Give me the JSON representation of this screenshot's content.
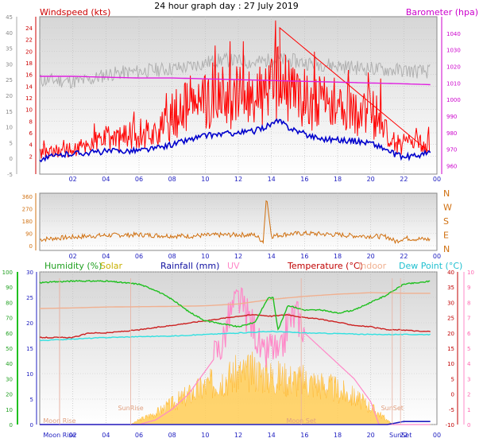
{
  "page": {
    "title": "24 hour graph day : 27 July 2019"
  },
  "chart_data": [
    {
      "panel": "wind_baro",
      "type": "line",
      "titles": {
        "left": "Windspeed (kts)",
        "right": "Barometer (hpa)"
      },
      "x_ticks": [
        "02",
        "04",
        "06",
        "08",
        "10",
        "12",
        "14",
        "16",
        "18",
        "20",
        "22",
        "00"
      ],
      "y_left_outer_ticks": [
        "-5",
        "0",
        "5",
        "10",
        "15",
        "20",
        "25",
        "30",
        "35",
        "40",
        "45"
      ],
      "y_left_inner_ticks": [
        "2",
        "4",
        "6",
        "8",
        "10",
        "12",
        "14",
        "16",
        "18",
        "20",
        "22",
        "24"
      ],
      "y_right_ticks": [
        "960",
        "970",
        "980",
        "990",
        "1000",
        "1010",
        "1020",
        "1030",
        "1040"
      ],
      "y_left_outer_range": [
        -5,
        45
      ],
      "y_right_range": [
        955,
        1050
      ],
      "series": [
        {
          "name": "Barometer",
          "color": "#e020e0",
          "axis": "right",
          "x": [
            0,
            2,
            4,
            6,
            8,
            10,
            12,
            14,
            16,
            18,
            20,
            22,
            23.6
          ],
          "y": [
            1014,
            1014,
            1013.5,
            1013,
            1013,
            1012.5,
            1012,
            1011.5,
            1011,
            1010.5,
            1010,
            1009.5,
            1009
          ]
        },
        {
          "color": "#ff0000",
          "axis": "inner",
          "x": [
            0,
            2,
            3,
            4,
            5,
            6,
            7,
            8,
            9,
            10,
            11,
            12,
            13,
            14,
            14.5,
            15,
            16,
            17,
            18,
            19,
            20,
            20.9,
            21,
            22,
            23,
            23.6
          ],
          "y": [
            2.5,
            3,
            4,
            5,
            5,
            6,
            6,
            8,
            11,
            11,
            12,
            12,
            12,
            13,
            15,
            13,
            12,
            11,
            10,
            9,
            9,
            8,
            4.5,
            4,
            4,
            4
          ]
        },
        {
          "color": "#0000cc",
          "axis": "inner",
          "x": [
            0,
            1,
            2,
            3,
            4,
            5,
            6,
            7,
            8,
            9,
            10,
            11,
            12,
            13,
            14,
            14.5,
            15,
            16,
            17,
            18,
            19,
            20,
            21,
            21.5,
            22,
            23,
            23.6
          ],
          "y": [
            1.5,
            2,
            2.5,
            2.6,
            2.8,
            2.9,
            3,
            3.3,
            4,
            4.8,
            5.5,
            5.8,
            6,
            6.3,
            7.5,
            8,
            7,
            5.8,
            5,
            4.8,
            4.6,
            4.3,
            3,
            2.2,
            1.8,
            2.2,
            2.6
          ]
        },
        {
          "color": "#b0b0b0",
          "axis": "inner",
          "x": [
            0,
            1,
            2,
            3,
            4,
            5,
            6,
            7,
            8,
            9,
            10,
            11,
            12,
            13,
            14,
            15,
            16,
            17,
            18,
            19,
            20,
            21,
            22,
            23,
            23.6
          ],
          "y": [
            15,
            15,
            14.8,
            15,
            16,
            16.3,
            16.5,
            16.8,
            17,
            17.3,
            18,
            18.5,
            18.3,
            18,
            18.5,
            18.5,
            18,
            17.8,
            17.5,
            17.2,
            17,
            16.8,
            16.7,
            16.5,
            16.5
          ]
        }
      ]
    },
    {
      "panel": "wind_direction",
      "type": "line",
      "y_left_ticks": [
        "0",
        "90",
        "180",
        "270",
        "360"
      ],
      "y_right_labels": [
        "N",
        "W",
        "S",
        "E",
        "N"
      ],
      "y_range": [
        0,
        360
      ],
      "series": [
        {
          "color": "#d07010",
          "x": [
            0,
            1,
            2,
            3,
            4,
            5,
            6,
            7,
            8,
            9,
            10,
            11,
            12,
            13,
            13.5,
            13.7,
            14,
            15,
            16,
            17,
            18,
            19,
            20,
            21,
            21.5,
            22,
            23,
            23.6
          ],
          "y": [
            45,
            55,
            62,
            70,
            75,
            78,
            80,
            75,
            72,
            70,
            75,
            78,
            80,
            78,
            30,
            360,
            70,
            85,
            90,
            85,
            80,
            72,
            70,
            65,
            30,
            55,
            48,
            45
          ]
        }
      ]
    },
    {
      "panel": "humidity_temperature_solar",
      "type": "line",
      "titles": {
        "humidity": "Humidity  (%)",
        "solar": "Solar",
        "rainfall": "Rainfall (mm)",
        "uv": "UV",
        "temperature": "Temperature (°C)",
        "indoor": "Indoor",
        "dew_point": "Dew Point (°C)"
      },
      "x_ticks": [
        "02",
        "04",
        "06",
        "08",
        "10",
        "12",
        "14",
        "16",
        "18",
        "20",
        "22",
        "00"
      ],
      "y_left_humidity_ticks": [
        "0",
        "10",
        "20",
        "30",
        "40",
        "50",
        "60",
        "70",
        "80",
        "90",
        "100"
      ],
      "y_left_rain_ticks": [
        "0",
        "5",
        "10",
        "15",
        "20",
        "25",
        "30"
      ],
      "y_right_temp_ticks": [
        "-10",
        "-5",
        "0",
        "5",
        "10",
        "15",
        "20",
        "25",
        "30",
        "35",
        "40"
      ],
      "y_right_uv_ticks": [
        "0",
        "1",
        "2",
        "3",
        "4",
        "5",
        "6",
        "7",
        "8",
        "9",
        "10"
      ],
      "events": [
        {
          "label": "SunRise",
          "x": 5.5
        },
        {
          "label": "SunSet",
          "x": 21.3
        },
        {
          "label": "Moon Rise",
          "x": 1.2
        },
        {
          "label": "Moon Rise",
          "x": 1.2
        },
        {
          "label": "Moon Set",
          "x": 15.8
        },
        {
          "label": "SunSet",
          "x": 21.8
        }
      ],
      "series": [
        {
          "name": "Humidity",
          "color": "#20c020",
          "axis": "humidity",
          "x": [
            0,
            2,
            4,
            6,
            7,
            8,
            9,
            10,
            11,
            12,
            13,
            13.8,
            14.1,
            14.4,
            15,
            16,
            17,
            18,
            19,
            20,
            21,
            22,
            23,
            23.6
          ],
          "y": [
            93,
            94,
            94,
            92,
            88,
            82,
            74,
            68,
            66,
            64,
            67,
            83,
            83,
            62,
            78,
            75,
            75,
            73,
            75,
            80,
            85,
            92,
            93,
            94
          ]
        },
        {
          "name": "Indoor",
          "color": "#f0b090",
          "axis": "temp",
          "x": [
            0,
            2,
            4,
            6,
            8,
            10,
            12,
            14,
            16,
            18,
            20,
            22,
            23.6
          ],
          "y": [
            28,
            28.2,
            28.5,
            28.6,
            28.7,
            28.9,
            29.5,
            31,
            32,
            32.7,
            33.2,
            33,
            33
          ]
        },
        {
          "name": "Temperature",
          "color": "#cc2020",
          "axis": "temp",
          "x": [
            0,
            2,
            3,
            4,
            6,
            8,
            10,
            12,
            13,
            14,
            15,
            16,
            17,
            18,
            19,
            20,
            21,
            22,
            23,
            23.6
          ],
          "y": [
            18.5,
            18.5,
            20,
            20,
            21,
            22.5,
            24,
            25.5,
            26,
            25.5,
            26,
            25,
            24.5,
            23.5,
            22.5,
            22,
            21,
            21,
            20.5,
            20.5
          ]
        },
        {
          "name": "Dew Point",
          "color": "#30e0e0",
          "axis": "temp",
          "x": [
            0,
            2,
            4,
            6,
            8,
            10,
            12,
            14,
            16,
            18,
            20,
            22,
            23.6
          ],
          "y": [
            17.5,
            18,
            18.5,
            18.8,
            19,
            19.5,
            20,
            20.5,
            20,
            19.8,
            19.5,
            19.5,
            19.5
          ]
        },
        {
          "name": "UV",
          "color": "#ff88c8",
          "axis": "uv",
          "x": [
            0,
            6,
            7,
            8,
            9,
            10,
            11,
            11.5,
            12,
            12.5,
            13,
            13.5,
            14,
            14.5,
            15,
            15.5,
            16,
            17,
            18,
            19,
            20,
            20.5,
            23.6
          ],
          "y": [
            0,
            0,
            0.3,
            1,
            2,
            3.5,
            5,
            7,
            8,
            7,
            6,
            4,
            5,
            4,
            6.5,
            7,
            6,
            5,
            4,
            3,
            1.5,
            0,
            0
          ]
        },
        {
          "name": "Solar",
          "color": "#ffc040",
          "axis": "humidity",
          "x": [
            0,
            5.5,
            6,
            7,
            8,
            9,
            10,
            11,
            12,
            13,
            14,
            15,
            16,
            17,
            18,
            19,
            20,
            21,
            21.3,
            23.6
          ],
          "y": [
            0,
            0,
            4,
            10,
            18,
            26,
            33,
            40,
            44,
            46,
            42,
            40,
            38,
            35,
            30,
            24,
            15,
            4,
            0,
            0
          ]
        },
        {
          "name": "Rainfall",
          "color": "#2020c0",
          "axis": "rain",
          "x": [
            0,
            21,
            22,
            23.6
          ],
          "y": [
            0,
            0,
            0.6,
            0.6
          ]
        }
      ]
    }
  ]
}
